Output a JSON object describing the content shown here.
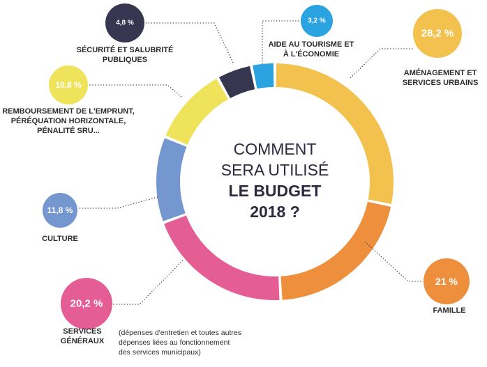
{
  "chart_data": {
    "type": "pie",
    "variant": "donut",
    "title": [
      "COMMENT",
      "SERA UTILISÉ",
      "LE BUDGET",
      "2018 ?"
    ],
    "slices": [
      {
        "key": "amenagement",
        "value": 28.2,
        "value_label": "28,2 %",
        "label": [
          "AMÉNAGEMENT ET",
          "SERVICES URBAINS"
        ],
        "color": "#F2C14E"
      },
      {
        "key": "famille",
        "value": 21.0,
        "value_label": "21 %",
        "label": [
          "FAMILLE"
        ],
        "color": "#EE8F3E"
      },
      {
        "key": "services-generaux",
        "value": 20.2,
        "value_label": "20,2 %",
        "label": [
          "SERVICES",
          "GÉNÉRAUX"
        ],
        "note": [
          "(dépenses d'entretien et toutes autres",
          "dépenses liées au fonctionnement",
          "des services municipaux)"
        ],
        "color": "#E45D95"
      },
      {
        "key": "culture",
        "value": 11.8,
        "value_label": "11,8 %",
        "label": [
          "CULTURE"
        ],
        "color": "#7497D0"
      },
      {
        "key": "remboursement",
        "value": 10.8,
        "value_label": "10,8 %",
        "label": [
          "REMBOURSEMENT DE L'EMPRUNT,",
          "PÉRÉQUATION HORIZONTALE,",
          "PÉNALITÉ SRU..."
        ],
        "color": "#EFE35C"
      },
      {
        "key": "securite",
        "value": 4.8,
        "value_label": "4,8 %",
        "label": [
          "SÉCURITÉ ET SALUBRITÉ",
          "PUBLIQUES"
        ],
        "color": "#363650"
      },
      {
        "key": "tourisme",
        "value": 3.2,
        "value_label": "3,2 %",
        "label": [
          "AIDE AU TOURISME ET",
          "À L'ÉCONOMIE"
        ],
        "color": "#2AA3E0"
      }
    ]
  }
}
